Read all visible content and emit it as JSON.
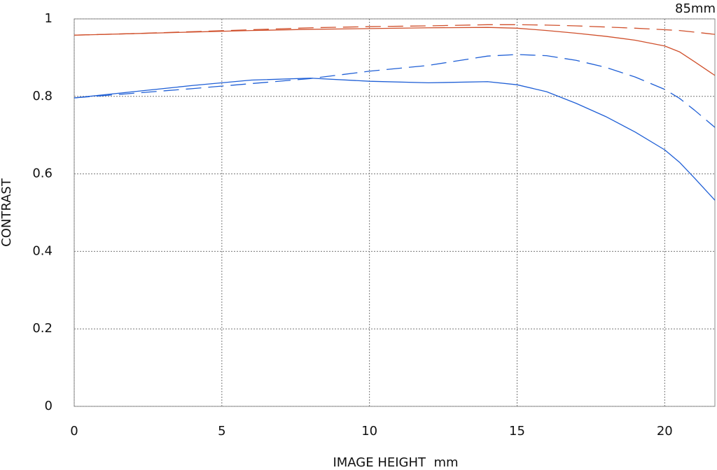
{
  "chart_data": {
    "type": "line",
    "title": "85mm",
    "x_label": "IMAGE HEIGHT  mm",
    "y_label": "CONTRAST",
    "x": [
      0,
      2,
      4,
      6,
      8,
      10,
      12,
      14,
      15,
      16,
      17,
      18,
      19,
      20,
      20.5,
      21,
      21.7
    ],
    "series": [
      {
        "color": "#d0502c",
        "dashed": false,
        "values": [
          0.958,
          0.962,
          0.966,
          0.97,
          0.973,
          0.975,
          0.977,
          0.978,
          0.976,
          0.97,
          0.963,
          0.955,
          0.945,
          0.93,
          0.915,
          0.89,
          0.854
        ]
      },
      {
        "color": "#d0502c",
        "dashed": true,
        "values": [
          0.958,
          0.962,
          0.967,
          0.972,
          0.977,
          0.98,
          0.982,
          0.985,
          0.985,
          0.984,
          0.982,
          0.979,
          0.976,
          0.972,
          0.97,
          0.966,
          0.96
        ]
      },
      {
        "color": "#1f5fd6",
        "dashed": false,
        "values": [
          0.796,
          0.812,
          0.828,
          0.842,
          0.847,
          0.839,
          0.835,
          0.838,
          0.83,
          0.812,
          0.782,
          0.748,
          0.708,
          0.662,
          0.63,
          0.59,
          0.532
        ]
      },
      {
        "color": "#1f5fd6",
        "dashed": true,
        "values": [
          0.796,
          0.808,
          0.82,
          0.833,
          0.846,
          0.865,
          0.88,
          0.904,
          0.908,
          0.905,
          0.893,
          0.875,
          0.85,
          0.818,
          0.795,
          0.765,
          0.72
        ]
      }
    ],
    "xlim": [
      0,
      21.7
    ],
    "ylim": [
      0,
      1
    ],
    "xticks": [
      0,
      5,
      10,
      15,
      20
    ],
    "yticks": [
      0,
      0.2,
      0.4,
      0.6,
      0.8,
      1
    ],
    "grid": true
  }
}
